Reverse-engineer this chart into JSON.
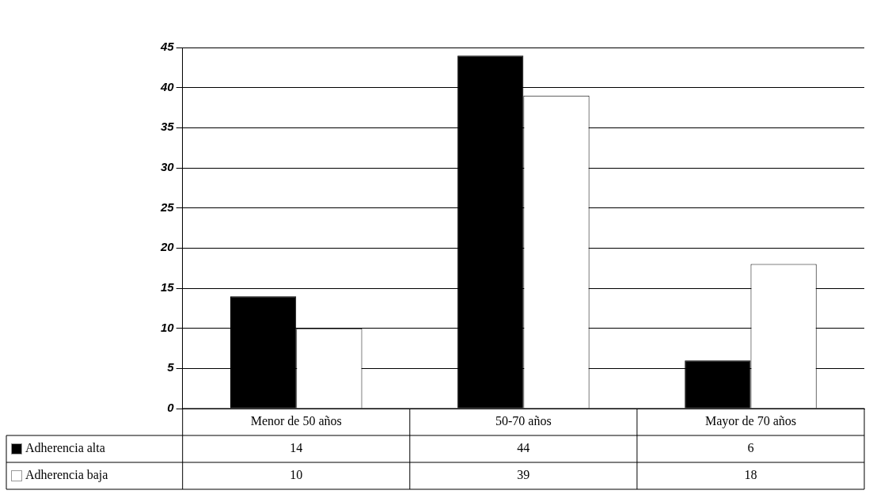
{
  "chart_data": {
    "type": "bar",
    "categories": [
      "Menor de 50 años",
      "50-70 años",
      "Mayor de 70 años"
    ],
    "series": [
      {
        "name": "Adherencia alta",
        "color": "#000000",
        "values": [
          14,
          44,
          6
        ]
      },
      {
        "name": "Adherencia baja",
        "color": "#ffffff",
        "values": [
          10,
          39,
          18
        ]
      }
    ],
    "ylim": [
      0,
      45
    ],
    "yticks": [
      0,
      5,
      10,
      15,
      20,
      25,
      30,
      35,
      40,
      45
    ],
    "grid": "y",
    "legend": "bottom",
    "data_labels": true
  }
}
